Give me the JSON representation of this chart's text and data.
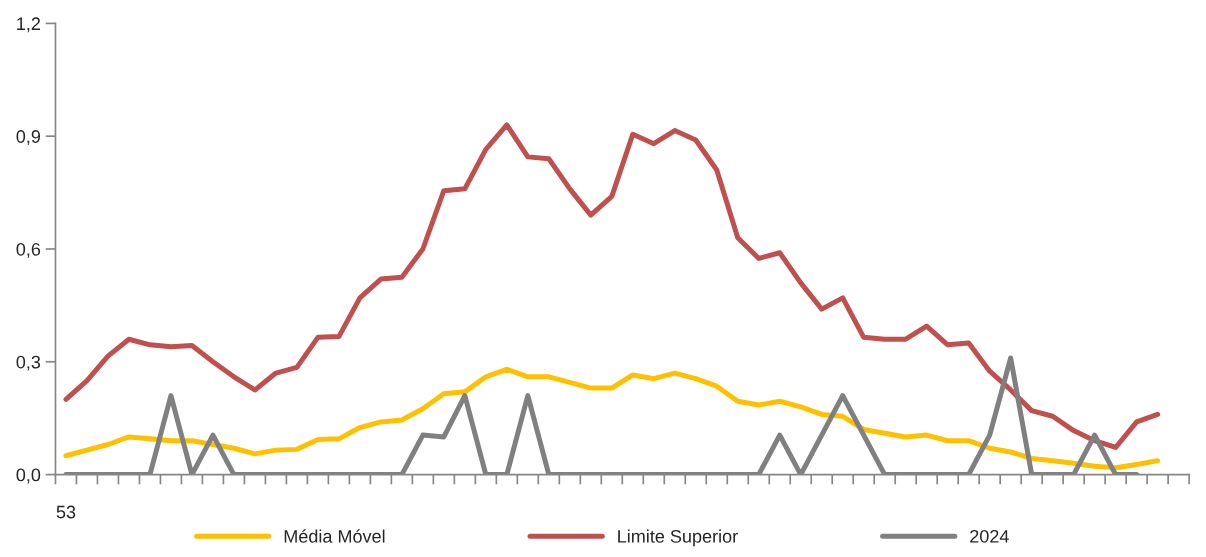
{
  "chart_data": {
    "type": "line",
    "categories": [
      "53",
      null,
      null,
      null,
      null,
      null,
      null,
      null,
      null,
      null,
      null,
      null,
      null,
      null,
      null,
      null,
      null,
      null,
      null,
      null,
      null,
      null,
      null,
      null,
      null,
      null,
      null,
      null,
      null,
      null,
      null,
      null,
      null,
      null,
      null,
      null,
      null,
      null,
      null,
      null,
      null,
      null,
      null,
      null,
      null,
      null,
      null,
      null,
      null,
      null,
      null,
      null,
      null,
      null
    ],
    "series": [
      {
        "name": "Média Móvel",
        "color": "#ffc000",
        "values": [
          0.05,
          0.065,
          0.08,
          0.1,
          0.095,
          0.09,
          0.09,
          0.08,
          0.07,
          0.055,
          0.065,
          0.067,
          0.093,
          0.095,
          0.125,
          0.14,
          0.145,
          0.175,
          0.215,
          0.22,
          0.26,
          0.28,
          0.26,
          0.26,
          0.245,
          0.23,
          0.23,
          0.265,
          0.255,
          0.27,
          0.255,
          0.235,
          0.195,
          0.185,
          0.195,
          0.18,
          0.16,
          0.155,
          0.12,
          0.11,
          0.1,
          0.105,
          0.09,
          0.09,
          0.07,
          0.06,
          0.043,
          0.037,
          0.03,
          0.022,
          0.018,
          0.027,
          0.037,
          null
        ]
      },
      {
        "name": "Limite Superior",
        "color": "#c0504d",
        "values": [
          0.2,
          0.25,
          0.315,
          0.36,
          0.345,
          0.34,
          0.343,
          0.3,
          0.26,
          0.225,
          0.27,
          0.285,
          0.365,
          0.367,
          0.47,
          0.52,
          0.525,
          0.6,
          0.755,
          0.76,
          0.865,
          0.93,
          0.845,
          0.84,
          0.76,
          0.69,
          0.74,
          0.905,
          0.88,
          0.915,
          0.89,
          0.81,
          0.63,
          0.575,
          0.59,
          0.51,
          0.44,
          0.47,
          0.365,
          0.36,
          0.36,
          0.395,
          0.345,
          0.35,
          0.275,
          0.225,
          0.17,
          0.155,
          0.117,
          0.09,
          0.072,
          0.14,
          0.16,
          null
        ]
      },
      {
        "name": "2024",
        "color": "#808080",
        "values": [
          0,
          0,
          0,
          0,
          0,
          0.21,
          0,
          0.105,
          0,
          0,
          0,
          0,
          0,
          0,
          0,
          0,
          0,
          0.105,
          0.1,
          0.21,
          0,
          0,
          0.21,
          0,
          0,
          0,
          0,
          0,
          0,
          0,
          0,
          0,
          0,
          0,
          0.105,
          0,
          0.105,
          0.21,
          0.105,
          0,
          0,
          0,
          0,
          0,
          0.105,
          0.31,
          0,
          0,
          0,
          0.105,
          0,
          0,
          null,
          null
        ]
      }
    ],
    "ylim": [
      0,
      1.2
    ],
    "yticks": [
      {
        "value": 0,
        "label": "0,0"
      },
      {
        "value": 0.3,
        "label": "0,3"
      },
      {
        "value": 0.6,
        "label": "0,6"
      },
      {
        "value": 0.9,
        "label": "0,9"
      },
      {
        "value": 1.2,
        "label": "1,2"
      }
    ],
    "grid": false,
    "legend": "bottom",
    "marker": "none",
    "line_style": "solid"
  }
}
